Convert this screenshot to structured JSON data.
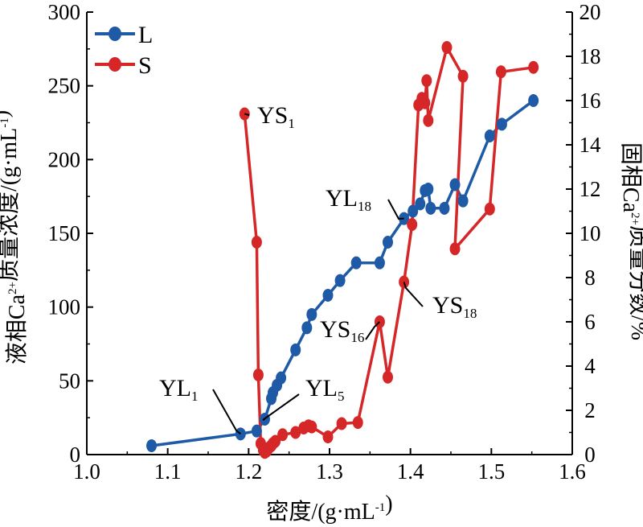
{
  "chart_data": {
    "type": "line",
    "xlabel": "密度/(g·mL-1)",
    "ylabel_left": "液相Ca2+质量浓度/(g·mL-1)",
    "ylabel_right": "固相Ca2+质量分数/%",
    "xlim": [
      1.0,
      1.6
    ],
    "ylim_left": [
      0,
      300
    ],
    "ylim_right": [
      0,
      20
    ],
    "x_ticks": [
      "1.0",
      "1.1",
      "1.2",
      "1.3",
      "1.4",
      "1.5",
      "1.6"
    ],
    "y_left_ticks": [
      "0",
      "50",
      "100",
      "150",
      "200",
      "250",
      "300"
    ],
    "y_right_ticks": [
      "0",
      "2",
      "4",
      "6",
      "8",
      "10",
      "12",
      "14",
      "16",
      "18",
      "20"
    ],
    "legend_position": "top-left",
    "grid": false,
    "series": [
      {
        "name": "L",
        "axis": "left",
        "color": "#1f5aa6",
        "x": [
          1.08,
          1.19,
          1.21,
          1.22,
          1.228,
          1.23,
          1.235,
          1.24,
          1.258,
          1.272,
          1.278,
          1.298,
          1.313,
          1.333,
          1.362,
          1.372,
          1.392,
          1.403,
          1.412,
          1.418,
          1.422,
          1.425,
          1.442,
          1.455,
          1.465,
          1.498,
          1.513,
          1.552
        ],
        "values": [
          6,
          14,
          16,
          24,
          38,
          42,
          47,
          52,
          71,
          86,
          95,
          108,
          118,
          130,
          130,
          144,
          160,
          165,
          170,
          179,
          180,
          167,
          167,
          183,
          172,
          216,
          224,
          240
        ]
      },
      {
        "name": "S",
        "axis": "right",
        "color": "#d62728",
        "x": [
          1.195,
          1.21,
          1.212,
          1.215,
          1.218,
          1.22,
          1.222,
          1.225,
          1.228,
          1.23,
          1.233,
          1.242,
          1.258,
          1.268,
          1.274,
          1.278,
          1.298,
          1.315,
          1.335,
          1.362,
          1.372,
          1.392,
          1.402,
          1.41,
          1.414,
          1.418,
          1.42,
          1.422,
          1.445,
          1.465,
          1.455,
          1.498,
          1.512,
          1.552
        ],
        "values": [
          15.4,
          9.6,
          3.6,
          0.5,
          0.2,
          0.1,
          0.15,
          0.3,
          0.4,
          0.5,
          0.6,
          0.9,
          1.0,
          1.2,
          1.3,
          1.25,
          0.8,
          1.4,
          1.45,
          6.0,
          3.5,
          7.8,
          10.4,
          15.8,
          16.1,
          15.9,
          16.9,
          15.1,
          18.4,
          17.1,
          9.3,
          11.1,
          17.3,
          17.5
        ]
      }
    ],
    "annotations": [
      {
        "label": "YS",
        "subscript": "1",
        "series": "S",
        "point": 0
      },
      {
        "label": "YL",
        "subscript": "1",
        "series": "L",
        "point": 1
      },
      {
        "label": "YL",
        "subscript": "5",
        "series": "L",
        "point": 3
      },
      {
        "label": "YS",
        "subscript": "16",
        "series": "S",
        "point": 19
      },
      {
        "label": "YS",
        "subscript": "18",
        "series": "S",
        "point": 21
      },
      {
        "label": "YL",
        "subscript": "18",
        "series": "L",
        "point": 16
      }
    ]
  }
}
